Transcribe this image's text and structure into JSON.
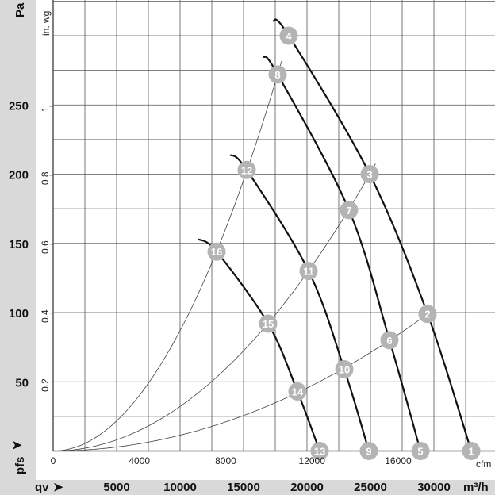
{
  "chart_data": {
    "type": "line",
    "title": "",
    "xlabel": "qv",
    "xunit_primary": "m³/h",
    "xunit_secondary": "cfm",
    "ylabel": "pfs",
    "yunit_primary": "Pa",
    "yunit_secondary": "in. wg",
    "xlim": [
      0,
      34560
    ],
    "ylim": [
      0,
      326
    ],
    "grid": true,
    "x_ticks_primary": [
      "5000",
      "10000",
      "15000",
      "20000",
      "25000",
      "30000"
    ],
    "x_ticks_primary_values": [
      5000,
      10000,
      15000,
      20000,
      25000,
      30000
    ],
    "x_ticks_secondary": [
      "0",
      "4000",
      "8000",
      "12000",
      "16000"
    ],
    "x_ticks_secondary_values": [
      0,
      4000,
      8000,
      12000,
      16000
    ],
    "y_ticks_primary": [
      "50",
      "100",
      "150",
      "200",
      "250"
    ],
    "y_ticks_primary_values": [
      50,
      100,
      150,
      200,
      250
    ],
    "y_ticks_secondary": [
      "0.2",
      "0.4",
      "0.6",
      "0.8",
      "1"
    ],
    "y_ticks_secondary_values": [
      0.2,
      0.4,
      0.6,
      0.8,
      1
    ],
    "fan_curves": [
      {
        "name": "curve-1",
        "x": [
          17310,
          18560,
          24940,
          29500,
          32940
        ],
        "y": [
          311,
          300,
          200,
          99,
          0
        ]
      },
      {
        "name": "curve-2",
        "x": [
          16560,
          17690,
          23310,
          26500,
          28940
        ],
        "y": [
          285,
          272,
          174,
          80,
          0
        ]
      },
      {
        "name": "curve-3",
        "x": [
          13940,
          15250,
          20125,
          22940,
          24875
        ],
        "y": [
          214,
          203,
          130,
          59,
          0
        ]
      },
      {
        "name": "curve-4",
        "x": [
          11440,
          12875,
          16940,
          19250,
          21000
        ],
        "y": [
          153,
          144,
          92,
          43,
          0
        ]
      }
    ],
    "system_curves": [
      {
        "name": "system-high",
        "through": [
          17690,
          272
        ]
      },
      {
        "name": "system-mid",
        "through": [
          24940,
          200
        ]
      },
      {
        "name": "system-low",
        "through": [
          29500,
          99
        ]
      }
    ],
    "operating_points": [
      {
        "label": "1",
        "x": 32940,
        "y": 0
      },
      {
        "label": "2",
        "x": 29500,
        "y": 99
      },
      {
        "label": "3",
        "x": 24940,
        "y": 200
      },
      {
        "label": "4",
        "x": 18560,
        "y": 300
      },
      {
        "label": "5",
        "x": 28940,
        "y": 0
      },
      {
        "label": "6",
        "x": 26500,
        "y": 80
      },
      {
        "label": "7",
        "x": 23310,
        "y": 174
      },
      {
        "label": "8",
        "x": 17690,
        "y": 272
      },
      {
        "label": "9",
        "x": 24875,
        "y": 0
      },
      {
        "label": "10",
        "x": 22940,
        "y": 59
      },
      {
        "label": "11",
        "x": 20125,
        "y": 130
      },
      {
        "label": "12",
        "x": 15250,
        "y": 203
      },
      {
        "label": "13",
        "x": 21000,
        "y": 0
      },
      {
        "label": "14",
        "x": 19250,
        "y": 43
      },
      {
        "label": "15",
        "x": 16940,
        "y": 92
      },
      {
        "label": "16",
        "x": 12875,
        "y": 144
      }
    ]
  },
  "colors": {
    "panel": "#d9d9d9",
    "marker": "#b4b4b4",
    "grid": "#555555"
  }
}
